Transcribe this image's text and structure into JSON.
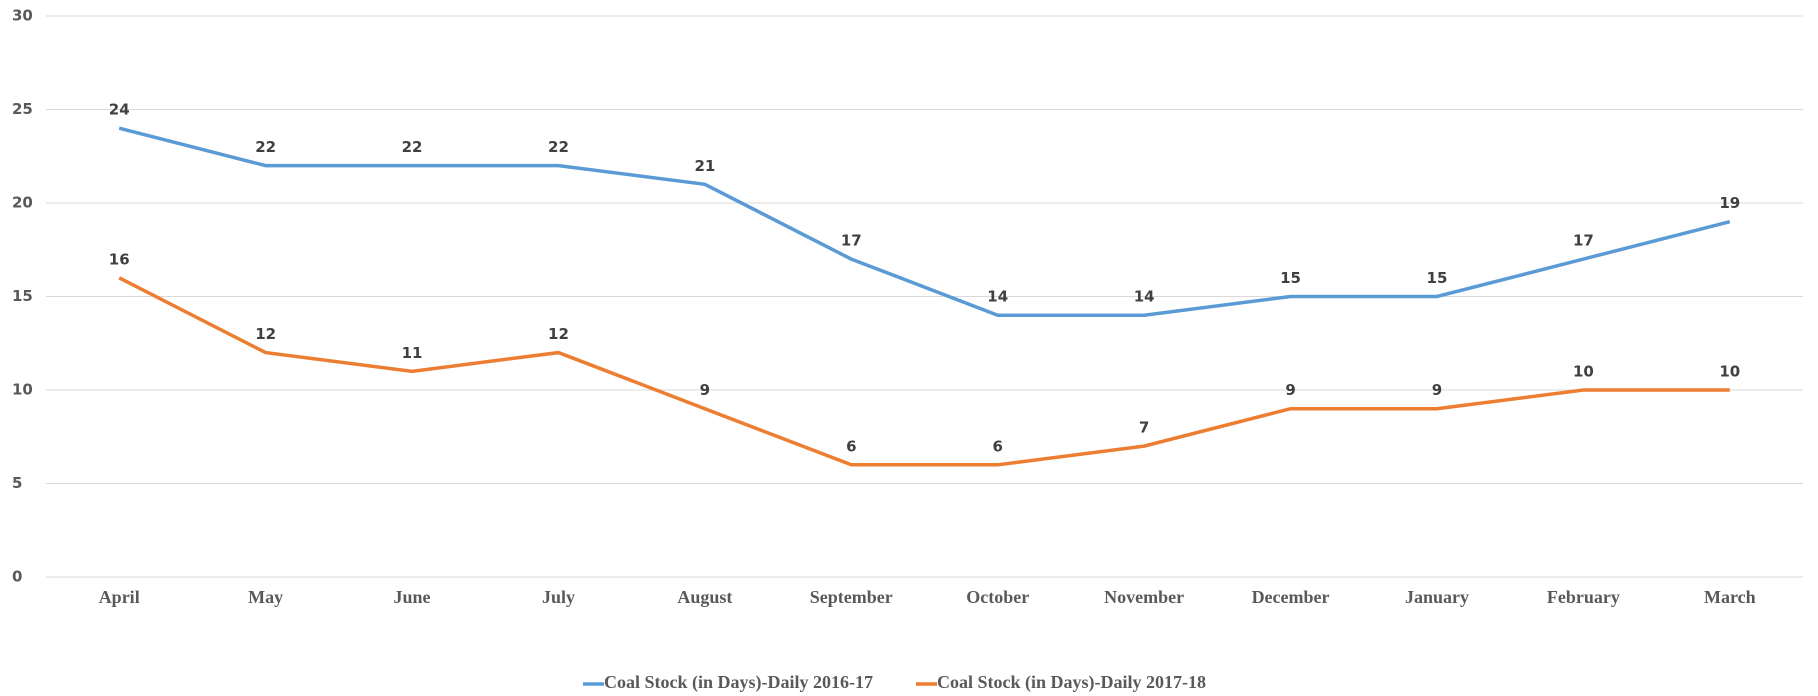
{
  "chart_data": {
    "type": "line",
    "categories": [
      "April",
      "May",
      "June",
      "July",
      "August",
      "September",
      "October",
      "November",
      "December",
      "January",
      "February",
      "March"
    ],
    "series": [
      {
        "name": "Coal Stock (in Days)-Daily 2016-17",
        "color": "#5b9bd5",
        "values": [
          24,
          22,
          22,
          22,
          21,
          17,
          14,
          14,
          15,
          15,
          17,
          19
        ]
      },
      {
        "name": "Coal Stock (in Days)-Daily 2017-18",
        "color": "#ed7d31",
        "values": [
          16,
          12,
          11,
          12,
          9,
          6,
          6,
          7,
          9,
          9,
          10,
          10
        ]
      }
    ],
    "ylim": [
      0,
      30
    ],
    "yticks": [
      0,
      5,
      10,
      15,
      20,
      25,
      30
    ],
    "grid": true,
    "legend": "bottom"
  }
}
